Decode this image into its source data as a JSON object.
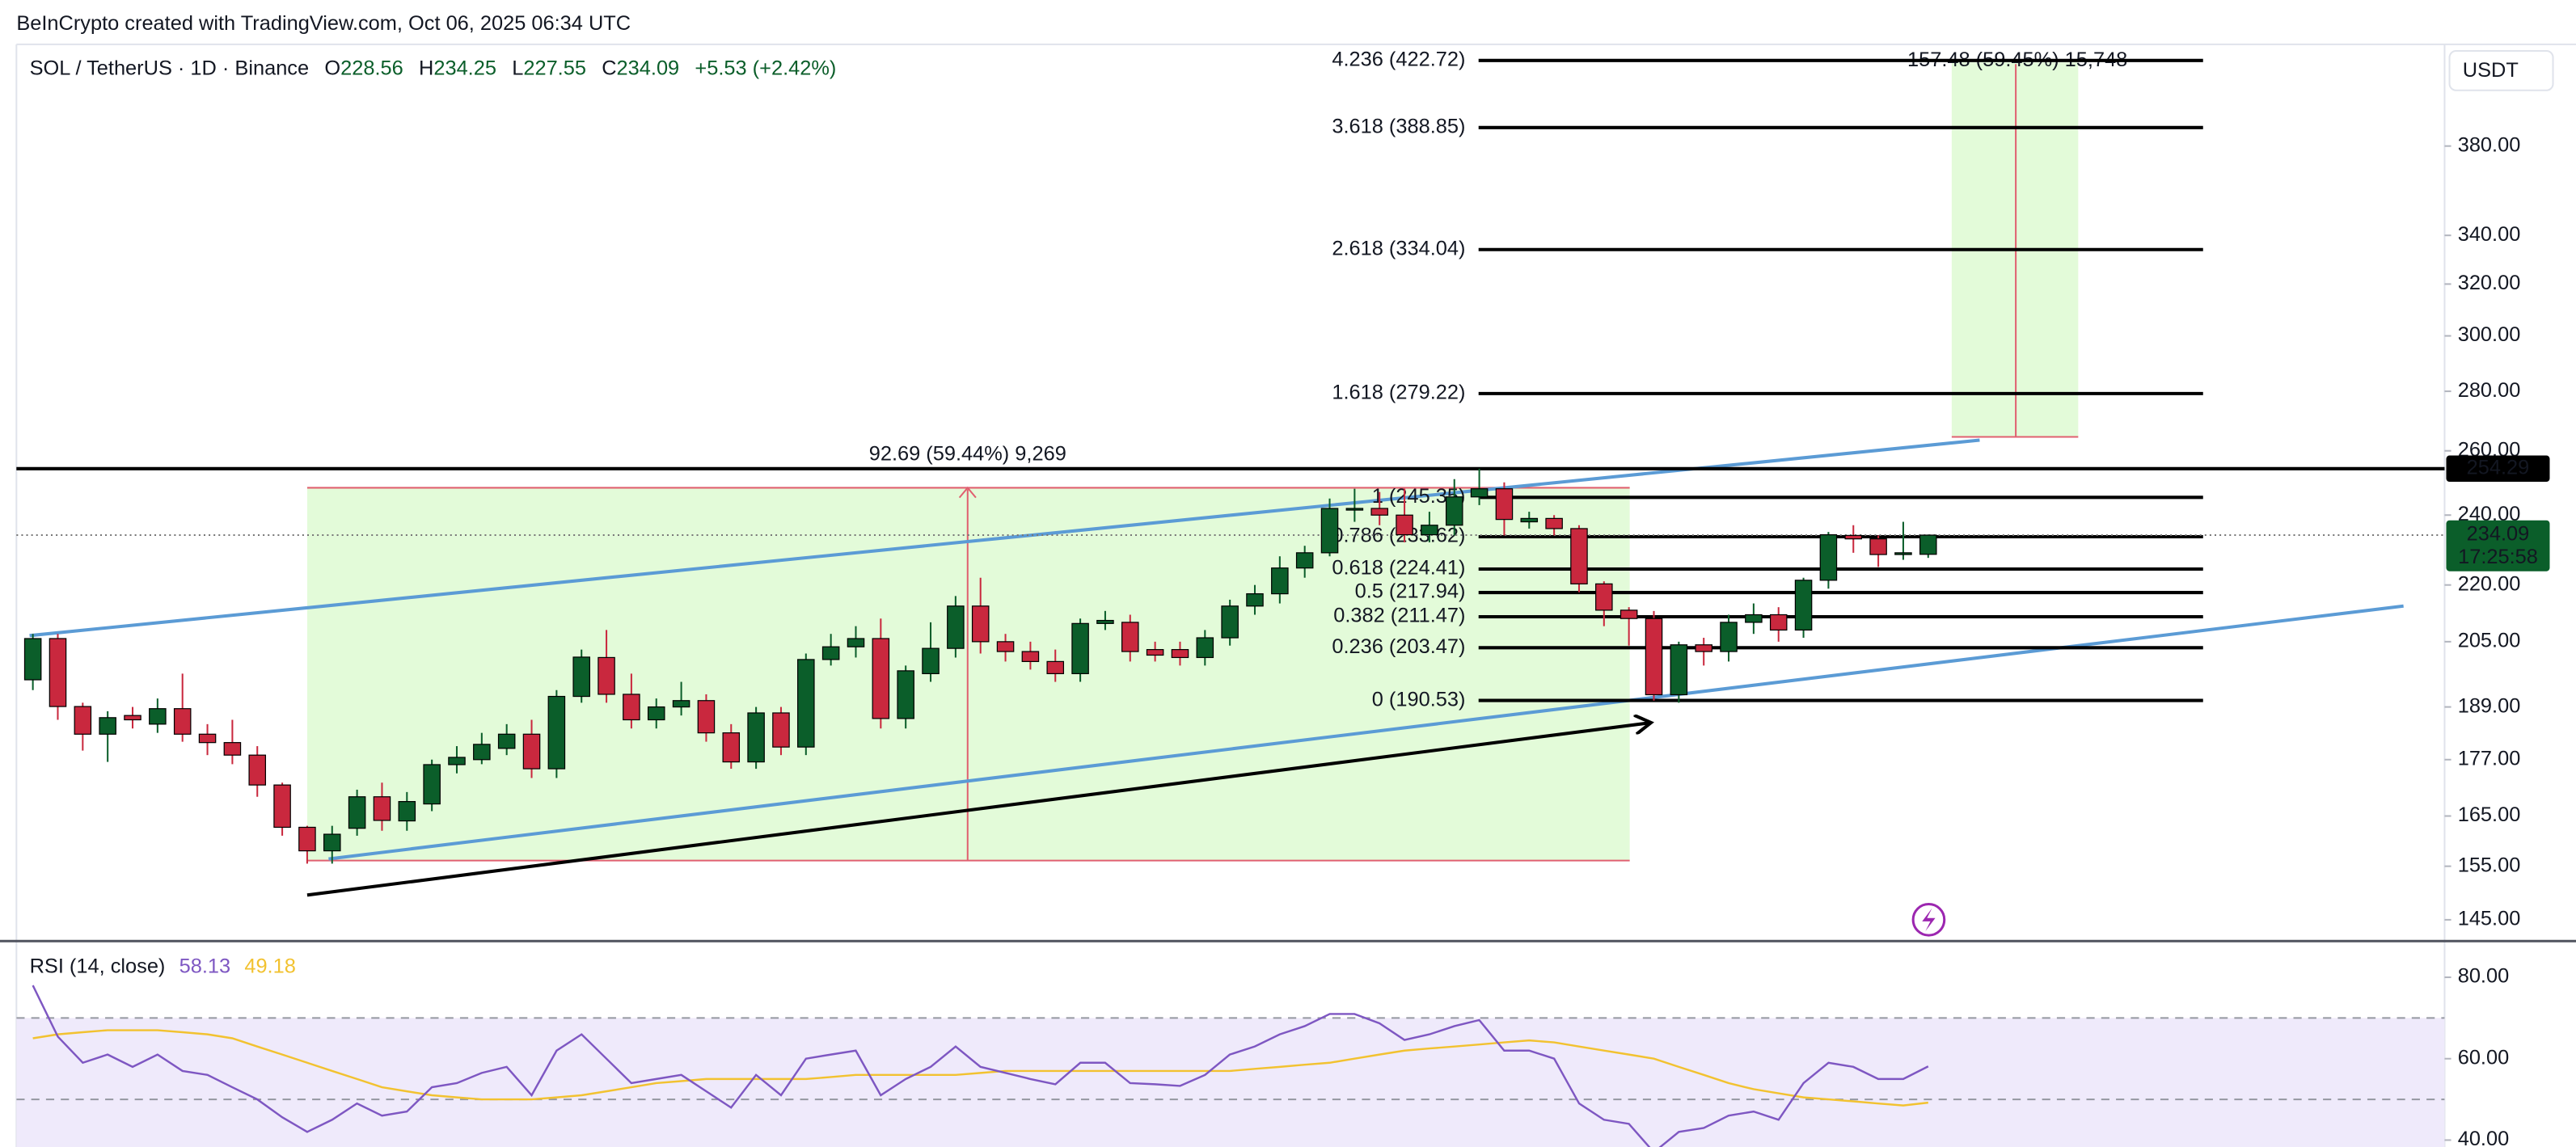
{
  "header": {
    "text": "BeInCrypto created with TradingView.com, Oct 06, 2025 06:34 UTC"
  },
  "chart_data": [
    {
      "type": "candlestick",
      "symbol": "SOL / TetherUS · 1D · Binance",
      "legend_keys": [
        "O",
        "H",
        "L",
        "C"
      ],
      "change": "+5.53 (+2.42%)",
      "currency": "USDT",
      "countdown": "17:25:58",
      "up_color": "#0b5e2a",
      "down_color": "#c9283e",
      "log_scale": true,
      "ylim": [
        141.5,
        431.3
      ],
      "yticks": [
        {
          "value": 145,
          "label": "145.00"
        },
        {
          "value": 155,
          "label": "155.00"
        },
        {
          "value": 165,
          "label": "165.00"
        },
        {
          "value": 177,
          "label": "177.00"
        },
        {
          "value": 189,
          "label": "189.00"
        },
        {
          "value": 205,
          "label": "205.00"
        },
        {
          "value": 220,
          "label": "220.00"
        },
        {
          "value": 240,
          "label": "240.00"
        },
        {
          "value": 260,
          "label": "260.00"
        },
        {
          "value": 280,
          "label": "280.00"
        },
        {
          "value": 300,
          "label": "300.00"
        },
        {
          "value": 320,
          "label": "320.00"
        },
        {
          "value": 340,
          "label": "340.00"
        },
        {
          "value": 380,
          "label": "380.00"
        }
      ],
      "fib_levels": [
        {
          "value": 422.72,
          "label": "4.236 (422.72)"
        },
        {
          "value": 388.85,
          "label": "3.618 (388.85)"
        },
        {
          "value": 334.04,
          "label": "2.618 (334.04)"
        },
        {
          "value": 279.22,
          "label": "1.618 (279.22)"
        },
        {
          "value": 245.35,
          "label": "1 (245.35)"
        },
        {
          "value": 233.62,
          "label": "0.786 (233.62)"
        },
        {
          "value": 224.41,
          "label": "0.618 (224.41)"
        },
        {
          "value": 217.94,
          "label": "0.5 (217.94)"
        },
        {
          "value": 211.47,
          "label": "0.382 (211.47)"
        },
        {
          "value": 203.47,
          "label": "0.236 (203.47)"
        },
        {
          "value": 190.53,
          "label": "0 (190.53)"
        }
      ],
      "horizontal_line": 254.29,
      "measures": [
        "92.69 (59.44%) 9,269",
        "157.48 (59.45%) 15,748"
      ],
      "open": [
        195.5,
        205.8,
        189.1,
        182.7,
        187,
        185,
        188.6,
        182.7,
        180.8,
        178,
        171.5,
        162.7,
        158,
        162.5,
        169,
        164,
        167.5,
        175.9,
        177,
        179.5,
        182.7,
        175,
        191.5,
        201,
        192,
        186,
        189,
        190.5,
        183,
        176.5,
        187.6,
        179.8,
        200.5,
        203.7,
        205.8,
        186.3,
        197,
        203.3,
        214.3,
        205,
        202.5,
        200,
        197,
        209.7,
        210,
        203,
        203,
        201,
        206,
        214.3,
        217.6,
        224.7,
        229,
        241.5,
        242,
        240,
        234.2,
        237,
        245.5,
        248,
        238,
        239,
        236,
        220.3,
        213.2,
        211,
        191.9,
        204.2,
        202.5,
        210,
        212,
        208,
        221.3,
        234,
        233,
        228.5,
        228.56
      ],
      "high": [
        207,
        207,
        190,
        188,
        189,
        191,
        197,
        185,
        186,
        180,
        172,
        163,
        163,
        170.5,
        172,
        170,
        177,
        180,
        183,
        185,
        186,
        193,
        203,
        208,
        197,
        191,
        195,
        192,
        185,
        189,
        189,
        202,
        207,
        209,
        211,
        199,
        210,
        217,
        222,
        207,
        205,
        203,
        211,
        213,
        212,
        205,
        205,
        208,
        216,
        220,
        228,
        231,
        245,
        248,
        247,
        248,
        241,
        251,
        254.3,
        250,
        241,
        240,
        237,
        221,
        214,
        213,
        205,
        206,
        212,
        215,
        214,
        222,
        235,
        237,
        234,
        238,
        234.25
      ],
      "low": [
        193,
        186,
        179,
        176.5,
        184,
        183,
        181,
        178,
        176,
        169,
        161,
        155.5,
        155.5,
        161,
        162,
        162,
        166,
        174,
        176,
        178,
        173,
        173,
        190,
        190,
        184,
        184,
        187,
        181,
        175,
        175,
        178,
        178,
        199,
        201,
        184,
        184,
        195,
        201,
        202,
        200,
        198,
        195,
        195,
        208,
        200,
        200,
        199,
        199,
        204,
        212,
        215,
        222,
        228,
        238,
        237,
        232,
        232,
        234,
        243,
        234,
        236,
        234,
        218,
        209,
        204,
        190.5,
        190,
        199,
        200,
        207,
        205,
        206,
        219,
        229,
        225,
        227,
        227.55
      ],
      "close": [
        205.8,
        189.1,
        182.7,
        186.5,
        186,
        188.6,
        182.7,
        180.8,
        178,
        171.5,
        162.7,
        158,
        161.3,
        169,
        164.1,
        168,
        175.9,
        177.5,
        180.4,
        182.7,
        175,
        191.5,
        201.1,
        192,
        186,
        189,
        190.5,
        183,
        176.5,
        187.6,
        179.8,
        200.5,
        203.7,
        205.8,
        186.3,
        197.7,
        203.3,
        214.3,
        205,
        202.5,
        200,
        197,
        209.7,
        210.5,
        202.5,
        201.6,
        201,
        206,
        214.3,
        217.6,
        224.7,
        229,
        242,
        242,
        240,
        234.2,
        237,
        245.5,
        248,
        238.7,
        239,
        236,
        220.3,
        213.2,
        211,
        191.9,
        204.2,
        202.5,
        210,
        212,
        208,
        221.3,
        234.2,
        233,
        228.5,
        229,
        234.09
      ]
    },
    {
      "type": "line",
      "title": "RSI (14, close)",
      "ylim": [
        38.3,
        88.5
      ],
      "yticks": [
        {
          "value": 80,
          "label": "80.00"
        },
        {
          "value": 60,
          "label": "60.00"
        },
        {
          "value": 40,
          "label": "40.00"
        }
      ],
      "levels": [
        70,
        50
      ],
      "series": [
        {
          "color": "#7e57c2",
          "values": [
            78,
            65.4,
            59,
            61,
            58,
            61,
            57,
            56,
            53,
            50,
            45.6,
            42,
            45,
            49,
            46,
            47,
            53,
            54,
            56.5,
            58,
            51,
            62,
            66,
            60,
            54,
            55,
            56,
            52,
            48,
            56,
            51,
            60,
            61,
            62,
            51,
            55,
            58,
            63,
            58,
            56.5,
            55,
            53.7,
            59,
            59,
            54,
            53.7,
            53.3,
            56,
            61,
            63,
            66,
            68,
            71,
            71,
            68.7,
            64.6,
            66,
            68,
            69.5,
            62,
            62,
            60,
            49,
            45,
            44,
            37,
            42,
            43,
            46,
            47,
            45,
            54,
            59,
            58,
            55,
            55,
            58.13
          ]
        },
        {
          "color": "#f2c230",
          "values": [
            65,
            66,
            66.5,
            67,
            67,
            67,
            66.5,
            66,
            65,
            63,
            61,
            59,
            57,
            55,
            53,
            52,
            51,
            50.5,
            50,
            50,
            50,
            50.5,
            51,
            52,
            53,
            54,
            54.5,
            55,
            55,
            55,
            55,
            55,
            55.5,
            56,
            56,
            56,
            56,
            56,
            56.5,
            57,
            57,
            57,
            57,
            57,
            57,
            57,
            57,
            57,
            57,
            57.5,
            58,
            58.5,
            59,
            60,
            61,
            62,
            62.5,
            63,
            63.5,
            64,
            64.5,
            64,
            63,
            62,
            61,
            60,
            58,
            56,
            54,
            52.5,
            51.5,
            50.5,
            50,
            49.5,
            49,
            48.5,
            49.18
          ]
        }
      ]
    }
  ]
}
